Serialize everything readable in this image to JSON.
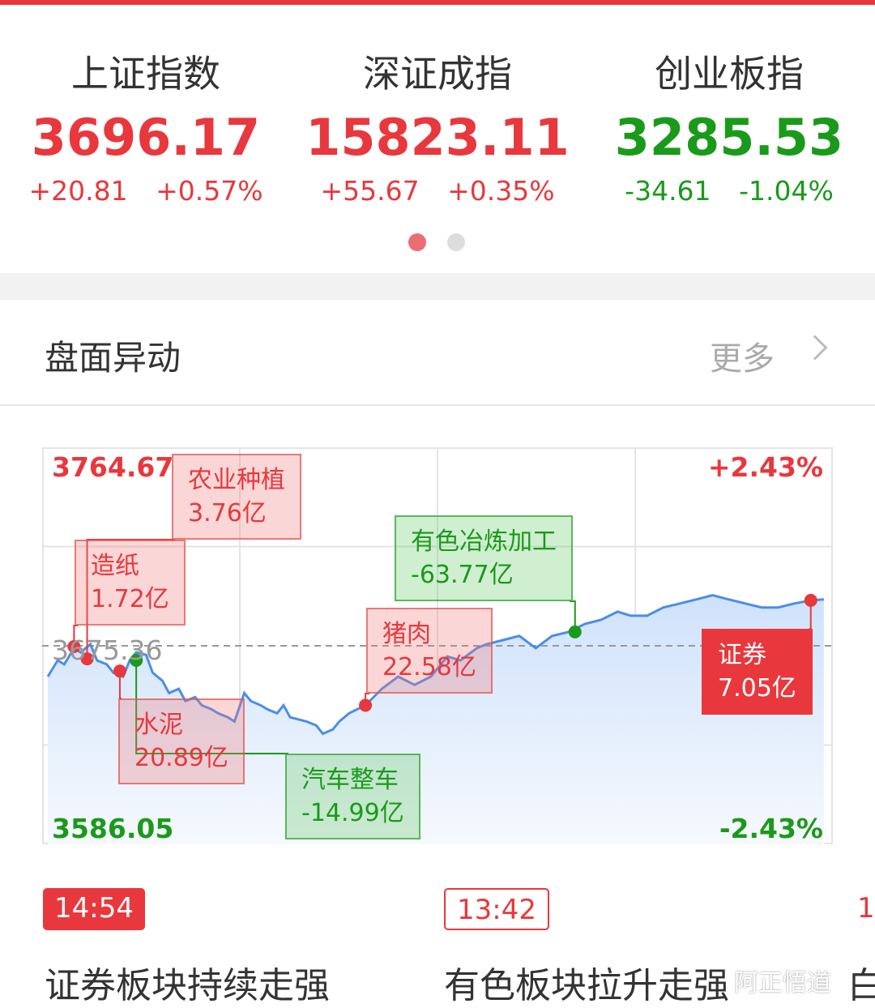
{
  "indices": [
    {
      "name": "上证指数",
      "value": "3696.17",
      "change": "+20.81",
      "pct": "+0.57%",
      "color": "#e8383d"
    },
    {
      "name": "深证成指",
      "value": "15823.11",
      "change": "+55.67",
      "pct": "+0.35%",
      "color": "#e8383d"
    },
    {
      "name": "创业板指",
      "value": "3285.53",
      "change": "-34.61",
      "pct": "-1.04%",
      "color": "#1a9a1a"
    }
  ],
  "pager": {
    "pages": 2,
    "active": 0
  },
  "section": {
    "title": "盘面异动",
    "more": "更多"
  },
  "chart_data": {
    "type": "line",
    "y_max_label": "3764.67",
    "y_min_label": "3586.05",
    "ref_label": "3675.36",
    "pct_max_label": "+2.43%",
    "pct_min_label": "-2.43%",
    "ylim": [
      3586.05,
      3764.67
    ],
    "reference": 3675.36,
    "series": [
      [
        "09:31",
        3661.5
      ],
      [
        "09:34",
        3668.8
      ],
      [
        "09:36",
        3667.0
      ],
      [
        "09:39",
        3674.3
      ],
      [
        "09:41",
        3672.4
      ],
      [
        "09:44",
        3676.1
      ],
      [
        "09:46",
        3668.8
      ],
      [
        "09:49",
        3667.0
      ],
      [
        "09:51",
        3663.3
      ],
      [
        "09:54",
        3661.5
      ],
      [
        "09:56",
        3668.8
      ],
      [
        "09:58",
        3672.4
      ],
      [
        "10:01",
        3671.3
      ],
      [
        "10:03",
        3663.3
      ],
      [
        "10:06",
        3659.6
      ],
      [
        "10:08",
        3654.1
      ],
      [
        "10:11",
        3656.0
      ],
      [
        "10:13",
        3650.5
      ],
      [
        "10:16",
        3652.3
      ],
      [
        "10:18",
        3648.6
      ],
      [
        "10:21",
        3646.8
      ],
      [
        "10:23",
        3645.0
      ],
      [
        "10:26",
        3643.2
      ],
      [
        "10:28",
        3641.3
      ],
      [
        "10:31",
        3654.1
      ],
      [
        "10:33",
        3650.5
      ],
      [
        "10:36",
        3648.6
      ],
      [
        "10:38",
        3646.8
      ],
      [
        "10:41",
        3645.0
      ],
      [
        "10:43",
        3648.6
      ],
      [
        "10:45",
        3643.2
      ],
      [
        "10:50",
        3641.3
      ],
      [
        "10:53",
        3639.5
      ],
      [
        "10:55",
        3635.8
      ],
      [
        "10:58",
        3637.7
      ],
      [
        "11:00",
        3641.3
      ],
      [
        "11:03",
        3645.0
      ],
      [
        "11:08",
        3648.6
      ],
      [
        "11:13",
        3656.0
      ],
      [
        "11:18",
        3661.5
      ],
      [
        "11:23",
        3657.8
      ],
      [
        "11:28",
        3661.5
      ],
      [
        "13:03",
        3670.6
      ],
      [
        "13:07",
        3668.8
      ],
      [
        "13:12",
        3674.3
      ],
      [
        "13:15",
        3676.1
      ],
      [
        "13:20",
        3677.9
      ],
      [
        "13:25",
        3679.8
      ],
      [
        "13:30",
        3674.3
      ],
      [
        "13:35",
        3679.8
      ],
      [
        "13:40",
        3681.6
      ],
      [
        "13:45",
        3685.2
      ],
      [
        "13:50",
        3687.1
      ],
      [
        "13:55",
        3690.7
      ],
      [
        "13:59",
        3688.9
      ],
      [
        "14:04",
        3688.9
      ],
      [
        "14:09",
        3692.6
      ],
      [
        "14:14",
        3694.4
      ],
      [
        "14:19",
        3696.2
      ],
      [
        "14:24",
        3698.1
      ],
      [
        "14:29",
        3696.2
      ],
      [
        "14:34",
        3694.4
      ],
      [
        "14:39",
        3692.6
      ],
      [
        "14:44",
        3692.6
      ],
      [
        "14:49",
        3694.4
      ],
      [
        "14:54",
        3695.8
      ],
      [
        "14:58",
        3696.2
      ]
    ],
    "events": [
      {
        "name": "农业种植",
        "amount": "3.76亿",
        "time": "09:43",
        "price": 3669.5,
        "dir": "up"
      },
      {
        "name": "造纸",
        "amount": "1.72亿",
        "time": "09:39",
        "price": 3675.0,
        "dir": "up"
      },
      {
        "name": "水泥",
        "amount": "20.89亿",
        "time": "09:53",
        "price": 3664.0,
        "dir": "up"
      },
      {
        "name": "汽车整车",
        "amount": "-14.99亿",
        "time": "09:58",
        "price": 3668.8,
        "dir": "down"
      },
      {
        "name": "猪肉",
        "amount": "22.58亿",
        "time": "11:08",
        "price": 3648.6,
        "dir": "up"
      },
      {
        "name": "有色冶炼加工",
        "amount": "-63.77亿",
        "time": "13:42",
        "price": 3681.6,
        "dir": "down"
      },
      {
        "name": "证券",
        "amount": "7.05亿",
        "time": "14:54",
        "price": 3695.8,
        "dir": "up"
      }
    ]
  },
  "news": [
    {
      "time": "14:54",
      "title": "证券板块持续走强"
    },
    {
      "time": "13:42",
      "title": "有色板块拉升走强"
    },
    {
      "time": "1",
      "title": "白"
    }
  ],
  "watermark": "阿正悟道",
  "colors": {
    "up": "#e8383d",
    "down": "#1a9a1a",
    "line": "#4a8ee8"
  }
}
